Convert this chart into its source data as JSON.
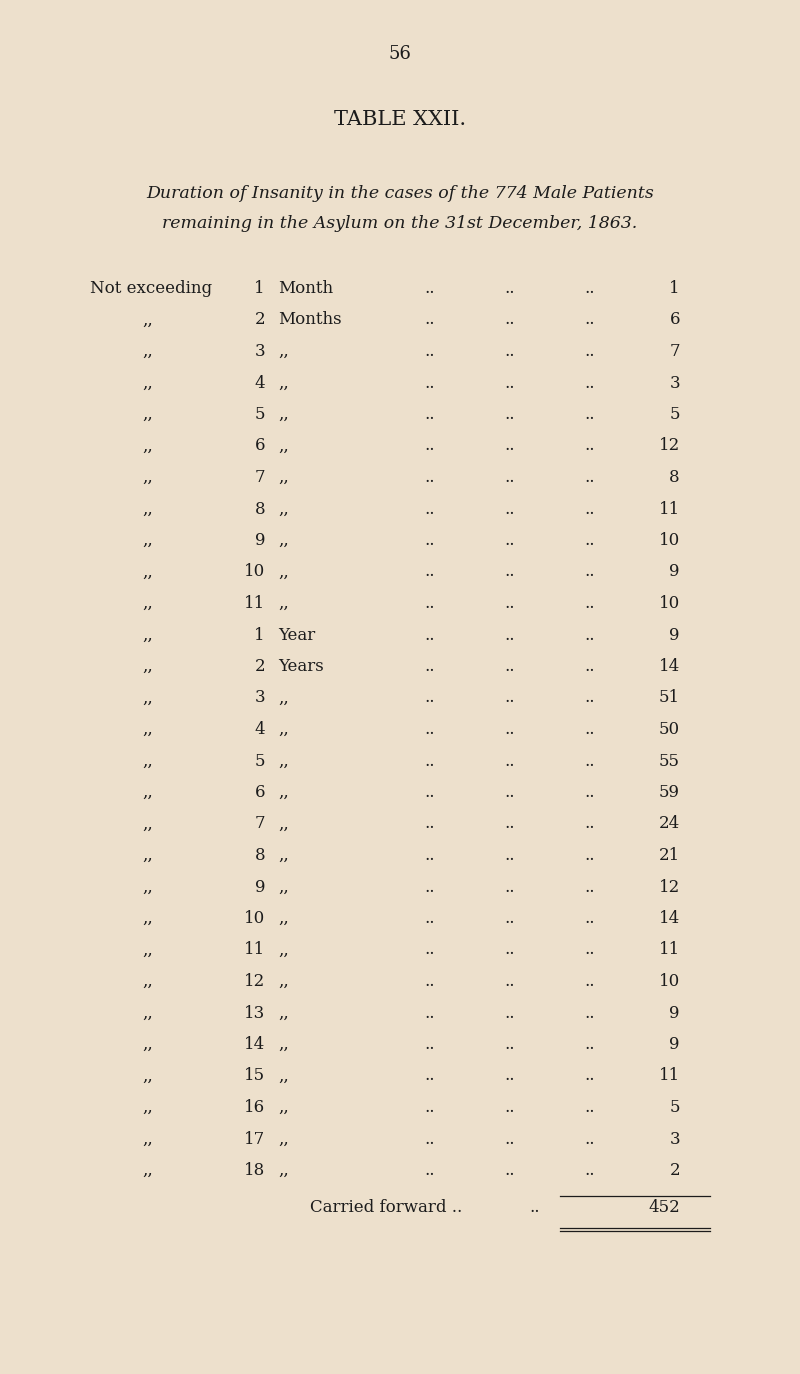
{
  "page_number": "56",
  "title": "TABLE XXII.",
  "subtitle_line1": "Duration of Insanity in the cases of the 774 Male Patients",
  "subtitle_line2": "remaining in the Asylum on the 31st December, 1863.",
  "row_data": [
    [
      "Not exceeding",
      "1",
      "Month",
      "1"
    ],
    [
      "„",
      "2",
      "Months",
      "6"
    ],
    [
      "„",
      "3",
      "„„",
      "7"
    ],
    [
      "„",
      "4",
      "„„",
      "3"
    ],
    [
      "„",
      "5",
      "„„",
      "5"
    ],
    [
      "„",
      "6",
      "„„",
      "12"
    ],
    [
      "„",
      "7",
      "„„",
      "8"
    ],
    [
      "„",
      "8",
      "„„",
      "11"
    ],
    [
      "„",
      "9",
      "„„",
      "10"
    ],
    [
      "„",
      "10",
      "„„",
      "9"
    ],
    [
      "„",
      "11",
      "„„",
      "10"
    ],
    [
      "„",
      "1",
      "Year",
      "9"
    ],
    [
      "„",
      "2",
      "Years",
      "14"
    ],
    [
      "„",
      "3",
      "„„",
      "51"
    ],
    [
      "„",
      "4",
      "„„",
      "50"
    ],
    [
      "„",
      "5",
      "„„",
      "55"
    ],
    [
      "„",
      "6",
      "„„",
      "59"
    ],
    [
      "„",
      "7",
      "„„",
      "24"
    ],
    [
      "„",
      "8",
      "„„",
      "21"
    ],
    [
      "„",
      "9",
      "„„",
      "12"
    ],
    [
      "„",
      "10",
      "„„",
      "14"
    ],
    [
      "„",
      "11",
      "„„",
      "11"
    ],
    [
      "„",
      "12",
      "„„",
      "10"
    ],
    [
      "„",
      "13",
      "„„",
      "9"
    ],
    [
      "„",
      "14",
      "„„",
      "9"
    ],
    [
      "„",
      "15",
      "„„",
      "11"
    ],
    [
      "„",
      "16",
      "„„",
      "5"
    ],
    [
      "„",
      "17",
      "„„",
      "3"
    ],
    [
      "„",
      "18",
      "„„",
      "2"
    ]
  ],
  "carried_forward_value": "452",
  "bg_color": "#ede0cc",
  "text_color": "#1c1c1c",
  "font_size_page": 13,
  "font_size_title": 15,
  "font_size_subtitle": 12.5,
  "font_size_row": 12,
  "font_size_total": 12
}
